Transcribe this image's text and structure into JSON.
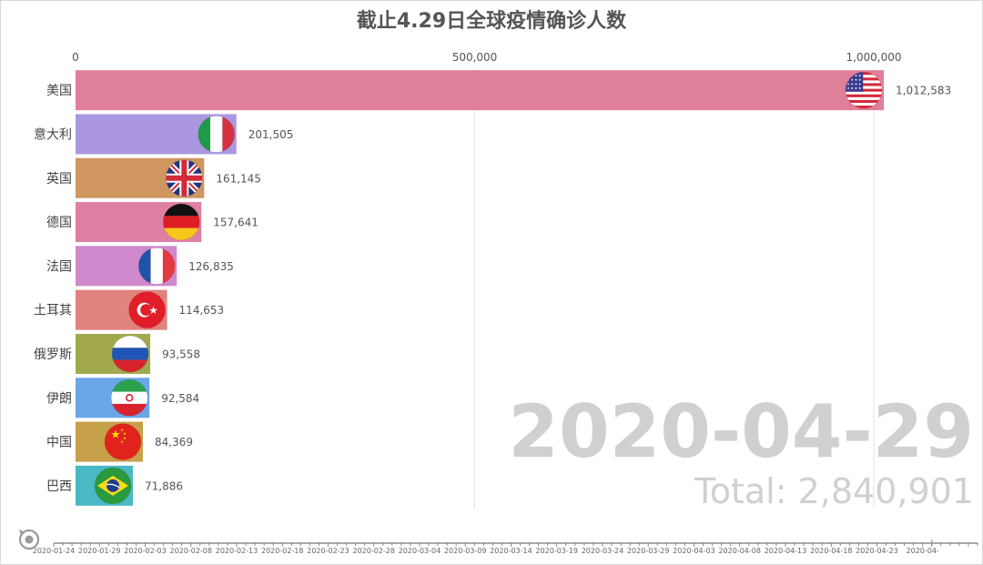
{
  "chart_data": {
    "type": "bar",
    "title": "截止4.29日全球疫情确诊人数",
    "categories": [
      "美国",
      "意大利",
      "英国",
      "德国",
      "法国",
      "土耳其",
      "俄罗斯",
      "伊朗",
      "中国",
      "巴西"
    ],
    "values": [
      1012583,
      201505,
      161145,
      157641,
      126835,
      114653,
      93558,
      92584,
      84369,
      71886
    ],
    "value_labels": [
      "1,012,583",
      "201,505",
      "161,145",
      "157,641",
      "126,835",
      "114,653",
      "93,558",
      "92,584",
      "84,369",
      "71,886"
    ],
    "colors": [
      "#df7f9a",
      "#ab97e0",
      "#cf9660",
      "#df7fa4",
      "#cf89cc",
      "#e0837f",
      "#a2a84d",
      "#6aa6e8",
      "#c7a04a",
      "#4bb9c4"
    ],
    "flags": [
      "usa-flag-icon",
      "italy-flag-icon",
      "uk-flag-icon",
      "germany-flag-icon",
      "france-flag-icon",
      "turkey-flag-icon",
      "russia-flag-icon",
      "iran-flag-icon",
      "china-flag-icon",
      "brazil-flag-icon"
    ],
    "xlim": [
      0,
      1000000
    ],
    "x_ticks": [
      0,
      500000,
      1000000
    ],
    "x_tick_labels": [
      "0",
      "500,000",
      "1,000,000"
    ],
    "grid": true,
    "orientation": "horizontal",
    "current_date": "2020-04-29",
    "total_label": "Total: 2,840,901"
  },
  "timeline": {
    "labels": [
      "2020-01-24",
      "2020-01-29",
      "2020-02-03",
      "2020-02-08",
      "2020-02-13",
      "2020-02-18",
      "2020-02-23",
      "2020-02-28",
      "2020-03-04",
      "2020-03-09",
      "2020-03-14",
      "2020-03-19",
      "2020-03-24",
      "2020-03-29",
      "2020-04-03",
      "2020-04-08",
      "2020-04-13",
      "2020-04-18",
      "2020-04-23",
      "2020-04-"
    ],
    "current": "2020-04-29",
    "replay_icon": "replay-icon"
  }
}
